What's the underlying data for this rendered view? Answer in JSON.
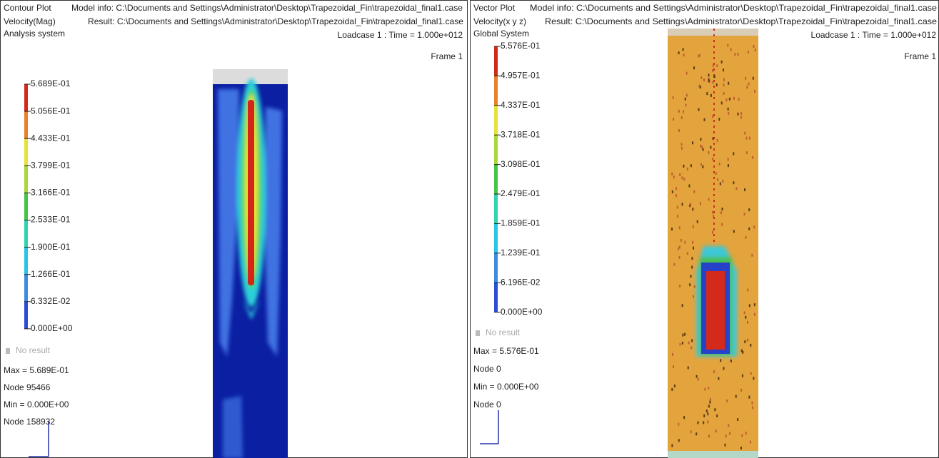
{
  "panels": [
    {
      "plot_type": "Contour Plot",
      "model_info": "Model info: C:\\Documents and Settings\\Administrator\\Desktop\\Trapezoidal_Fin\\trapezoidal_final1.case",
      "result_type": "Velocity(Mag)",
      "result": "Result: C:\\Documents and Settings\\Administrator\\Desktop\\Trapezoidal_Fin\\trapezoidal_final1.case",
      "system": "Analysis system",
      "loadcase": "Loadcase 1 : Time = 1.000e+012",
      "frame": "Frame 1",
      "legend": [
        "5.689E-01",
        "5.056E-01",
        "4.433E-01",
        "3.799E-01",
        "3.166E-01",
        "2.533E-01",
        "1.900E-01",
        "1.266E-01",
        "6.332E-02",
        "0.000E+00"
      ],
      "no_result": "No result",
      "max": "Max = 5.689E-01",
      "max_node": "Node 95466",
      "min": "Min = 0.000E+00",
      "min_node": "Node 158932"
    },
    {
      "plot_type": "Vector Plot",
      "model_info": "Model info: C:\\Documents and Settings\\Administrator\\Desktop\\Trapezoidal_Fin\\trapezoidal_final1.case",
      "result_type": "Velocity(x y z)",
      "result": "Result: C:\\Documents and Settings\\Administrator\\Desktop\\Trapezoidal_Fin\\trapezoidal_final1.case",
      "system": "Global System",
      "loadcase": "Loadcase 1 : Time = 1.000e+012",
      "frame": "Frame 1",
      "legend": [
        "5.576E-01",
        "4.957E-01",
        "4.337E-01",
        "3.718E-01",
        "3.098E-01",
        "2.479E-01",
        "1.859E-01",
        "1.239E-01",
        "6.196E-02",
        "0.000E+00"
      ],
      "no_result": "No result",
      "max": "Max = 5.576E-01",
      "max_node": "Node 0",
      "min": "Min = 0.000E+00",
      "min_node": "Node 0"
    }
  ]
}
